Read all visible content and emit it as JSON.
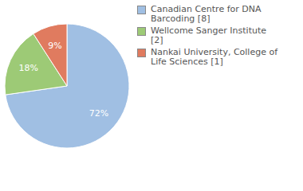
{
  "chart_data": {
    "type": "pie",
    "categories": [
      "Canadian Centre for DNA Barcoding [8]",
      "Wellcome Sanger Institute [2]",
      "Nankai University, College of Life Sciences [1]"
    ],
    "values": [
      72,
      18,
      9
    ],
    "value_labels": [
      "72%",
      "18%",
      "9%"
    ],
    "colors": [
      "#a0bfe3",
      "#9dca76",
      "#e07b5f"
    ],
    "data_labels": true,
    "legend": "upper right"
  }
}
